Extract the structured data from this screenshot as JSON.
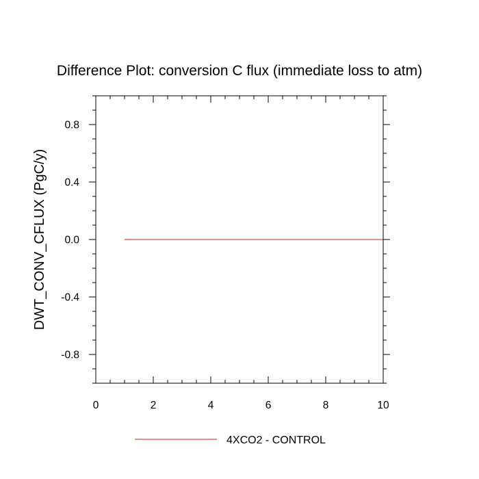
{
  "chart_data": {
    "type": "line",
    "title": "Difference Plot: conversion C flux (immediate loss to atm)",
    "xlabel": "",
    "ylabel": "DWT_CONV_CFLUX  (PgC/y)",
    "xlim": [
      0,
      10
    ],
    "ylim": [
      -1,
      1
    ],
    "x_ticks": [
      0,
      2,
      4,
      6,
      8,
      10
    ],
    "x_tick_labels": [
      "0",
      "2",
      "4",
      "6",
      "8",
      "10"
    ],
    "y_ticks": [
      -0.8,
      -0.4,
      0.0,
      0.4,
      0.8
    ],
    "y_tick_labels": [
      "-0.8",
      "-0.4",
      "0.0",
      "0.4",
      "0.8"
    ],
    "grid": false,
    "legend_position": "bottom-center",
    "series": [
      {
        "name": "4XCO2 - CONTROL",
        "color": "#e06666",
        "x": [
          1,
          2,
          3,
          4,
          5,
          6,
          7,
          8,
          9,
          10
        ],
        "y": [
          0,
          0,
          0,
          0,
          0,
          0,
          0,
          0,
          0,
          0
        ]
      }
    ]
  }
}
